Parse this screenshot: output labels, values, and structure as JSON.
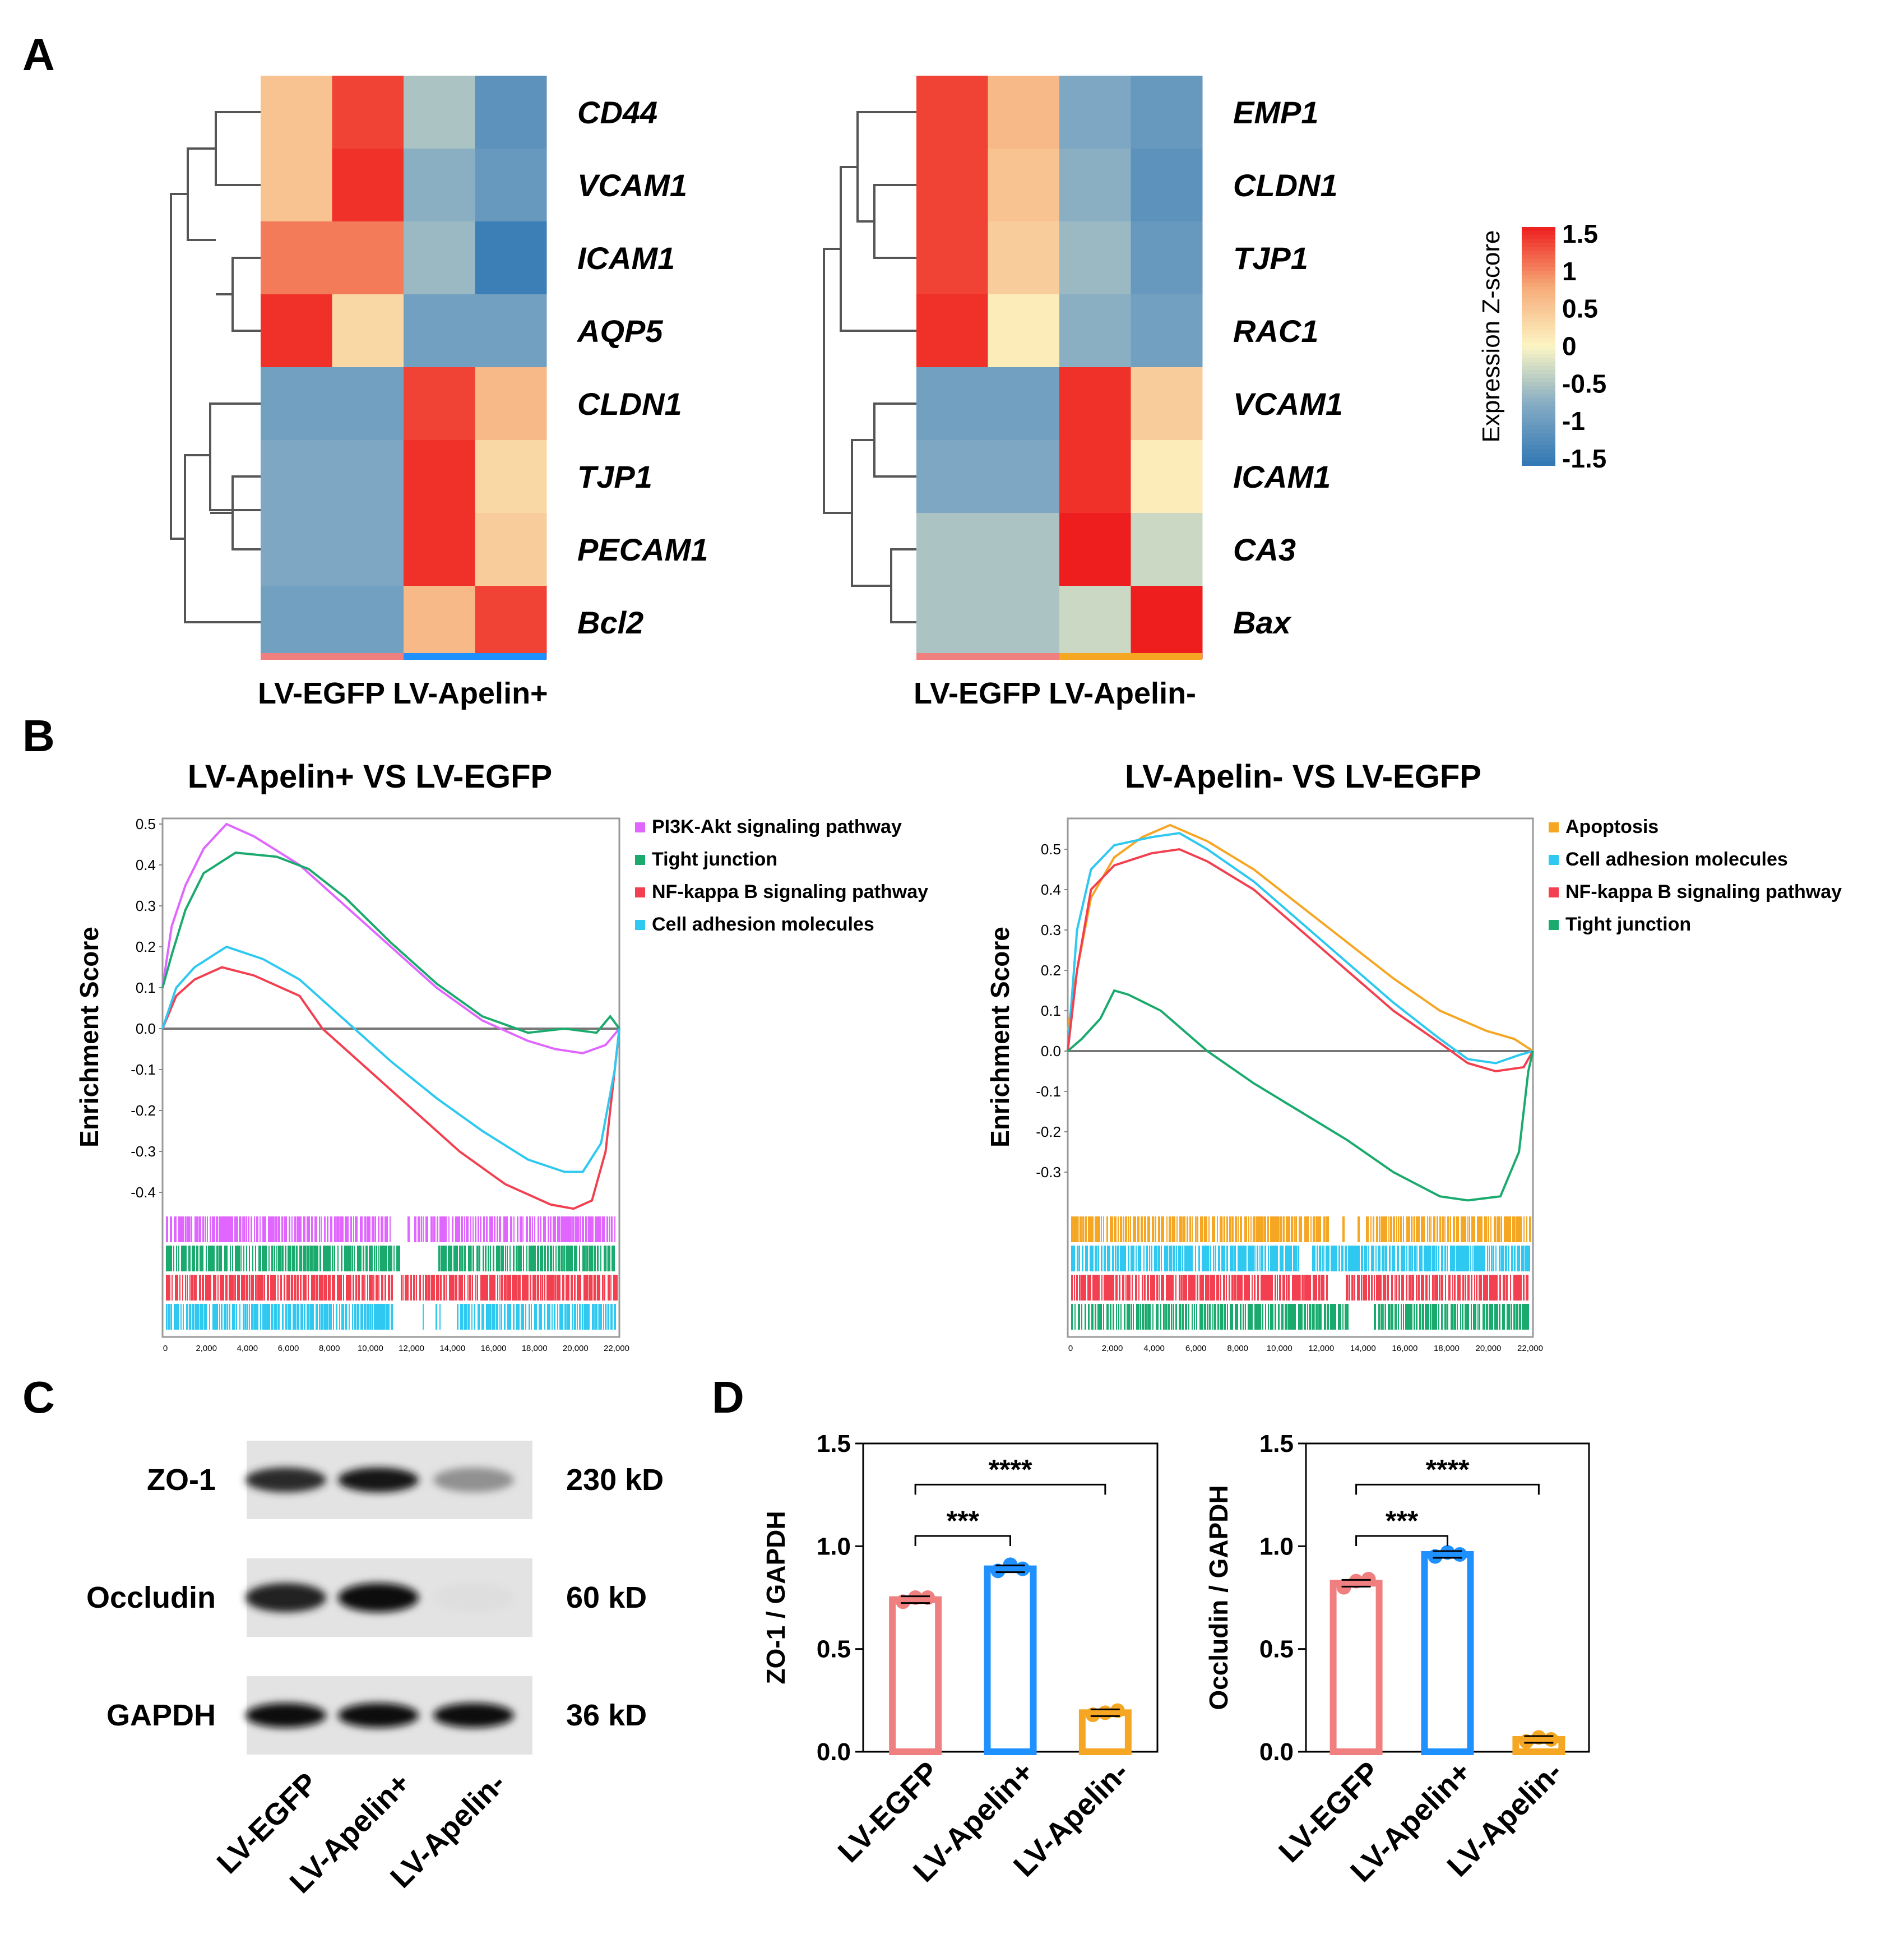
{
  "panel_labels": [
    "A",
    "B",
    "C",
    "D"
  ],
  "panelA": {
    "left": {
      "genes": [
        "CD44",
        "VCAM1",
        "ICAM1",
        "AQP5",
        "CLDN1",
        "TJP1",
        "PECAM1",
        "Bcl2"
      ],
      "groups": [
        "LV-EGFP",
        "LV-Apelin+"
      ],
      "group_label": "LV-EGFP LV-Apelin+",
      "group_colors": [
        "#f08080",
        "#1e90ff"
      ],
      "z": [
        [
          0.5,
          1.3,
          -0.5,
          -1.1
        ],
        [
          0.5,
          1.4,
          -0.7,
          -1.0
        ],
        [
          1.0,
          1.0,
          -0.6,
          -1.4
        ],
        [
          1.4,
          0.3,
          -0.9,
          -0.9
        ],
        [
          -0.9,
          -0.9,
          1.3,
          0.6
        ],
        [
          -0.8,
          -0.8,
          1.4,
          0.3
        ],
        [
          -0.8,
          -0.8,
          1.4,
          0.4
        ],
        [
          -0.9,
          -0.9,
          0.6,
          1.3
        ]
      ]
    },
    "right": {
      "genes": [
        "EMP1",
        "CLDN1",
        "TJP1",
        "RAC1",
        "VCAM1",
        "ICAM1",
        "CA3",
        "Bax"
      ],
      "groups": [
        "LV-EGFP",
        "LV-Apelin-"
      ],
      "group_label": "LV-EGFP LV-Apelin-",
      "group_colors": [
        "#f08080",
        "#f5a623"
      ],
      "z": [
        [
          1.3,
          0.6,
          -0.8,
          -1.0
        ],
        [
          1.3,
          0.5,
          -0.7,
          -1.1
        ],
        [
          1.3,
          0.4,
          -0.6,
          -1.0
        ],
        [
          1.4,
          0.1,
          -0.7,
          -0.9
        ],
        [
          -0.9,
          -0.9,
          1.4,
          0.4
        ],
        [
          -0.8,
          -0.8,
          1.4,
          0.1
        ],
        [
          -0.5,
          -0.5,
          1.5,
          -0.3
        ],
        [
          -0.5,
          -0.5,
          -0.3,
          1.5
        ]
      ]
    },
    "colorbar": {
      "title": "Expression Z-score",
      "ticks": [
        "1.5",
        "1",
        "0.5",
        "0",
        "-0.5",
        "-1",
        "-1.5"
      ],
      "range": [
        -1.5,
        1.5
      ]
    }
  },
  "panelB": {
    "left": {
      "title": "LV-Apelin+  VS LV-EGFP",
      "ylabel": "Enrichment Score",
      "yticks": [
        "0.5",
        "0.4",
        "0.3",
        "0.2",
        "0.1",
        "0.0",
        "-0.1",
        "-0.2",
        "-0.3",
        "-0.4"
      ],
      "xticks": [
        "0",
        "2,000",
        "4,000",
        "6,000",
        "8,000",
        "10,000",
        "12,000",
        "14,000",
        "16,000",
        "18,000",
        "20,000",
        "22,000"
      ],
      "legend": [
        {
          "label": "PI3K-Akt signaling pathway",
          "color": "#e066ff"
        },
        {
          "label": "Tight  junction",
          "color": "#1aaa6e"
        },
        {
          "label": "NF-kappa B signaling pathway",
          "color": "#f24050"
        },
        {
          "label": "Cell adhesion molecules",
          "color": "#2ec8f0"
        }
      ]
    },
    "right": {
      "title": "LV-Apelin-  VS LV-EGFP",
      "ylabel": "Enrichment Score",
      "yticks": [
        "0.5",
        "0.4",
        "0.3",
        "0.2",
        "0.1",
        "0.0",
        "-0.1",
        "-0.2",
        "-0.3"
      ],
      "xticks": [
        "0",
        "2,000",
        "4,000",
        "6,000",
        "8,000",
        "10,000",
        "12,000",
        "14,000",
        "16,000",
        "18,000",
        "20,000",
        "22,000"
      ],
      "legend": [
        {
          "label": "Apoptosis",
          "color": "#f5a623"
        },
        {
          "label": "Cell adhesion molecules",
          "color": "#2ec8f0"
        },
        {
          "label": "NF-kappa B signaling pathway",
          "color": "#f24050"
        },
        {
          "label": "Tight junction",
          "color": "#1aaa6e"
        }
      ]
    }
  },
  "panelC": {
    "rows": [
      {
        "label": "ZO-1",
        "size": "230 kD",
        "intensity": [
          0.85,
          0.95,
          0.4
        ]
      },
      {
        "label": "Occludin",
        "size": "60 kD",
        "intensity": [
          0.9,
          1.0,
          0.06
        ]
      },
      {
        "label": "GAPDH",
        "size": "36 kD",
        "intensity": [
          1.0,
          1.0,
          1.0
        ]
      }
    ],
    "lanes": [
      "LV-EGFP",
      "LV-Apelin+",
      "LV-Apelin-"
    ]
  },
  "chart_data": [
    {
      "type": "bar",
      "title": "",
      "ylabel": "ZO-1 / GAPDH",
      "categories": [
        "LV-EGFP",
        "LV-Apelin+",
        "LV-Apelin-"
      ],
      "values": [
        0.74,
        0.89,
        0.19
      ],
      "points": [
        [
          0.73,
          0.75,
          0.75
        ],
        [
          0.88,
          0.91,
          0.89
        ],
        [
          0.18,
          0.19,
          0.2
        ]
      ],
      "colors": [
        "#f08080",
        "#1e90ff",
        "#f5a623"
      ],
      "ylim": [
        0,
        1.5
      ],
      "yticks": [
        "0.0",
        "0.5",
        "1.0",
        "1.5"
      ],
      "significance": [
        {
          "pair": [
            0,
            1
          ],
          "label": "***"
        },
        {
          "pair": [
            0,
            2
          ],
          "label": "****"
        }
      ]
    },
    {
      "type": "bar",
      "title": "",
      "ylabel": "Occludin / GAPDH",
      "categories": [
        "LV-EGFP",
        "LV-Apelin+",
        "LV-Apelin-"
      ],
      "values": [
        0.82,
        0.96,
        0.06
      ],
      "points": [
        [
          0.8,
          0.83,
          0.84
        ],
        [
          0.95,
          0.97,
          0.96
        ],
        [
          0.05,
          0.07,
          0.06
        ]
      ],
      "colors": [
        "#f08080",
        "#1e90ff",
        "#f5a623"
      ],
      "ylim": [
        0,
        1.5
      ],
      "yticks": [
        "0.0",
        "0.5",
        "1.0",
        "1.5"
      ],
      "significance": [
        {
          "pair": [
            0,
            1
          ],
          "label": "***"
        },
        {
          "pair": [
            0,
            2
          ],
          "label": "****"
        }
      ]
    }
  ]
}
